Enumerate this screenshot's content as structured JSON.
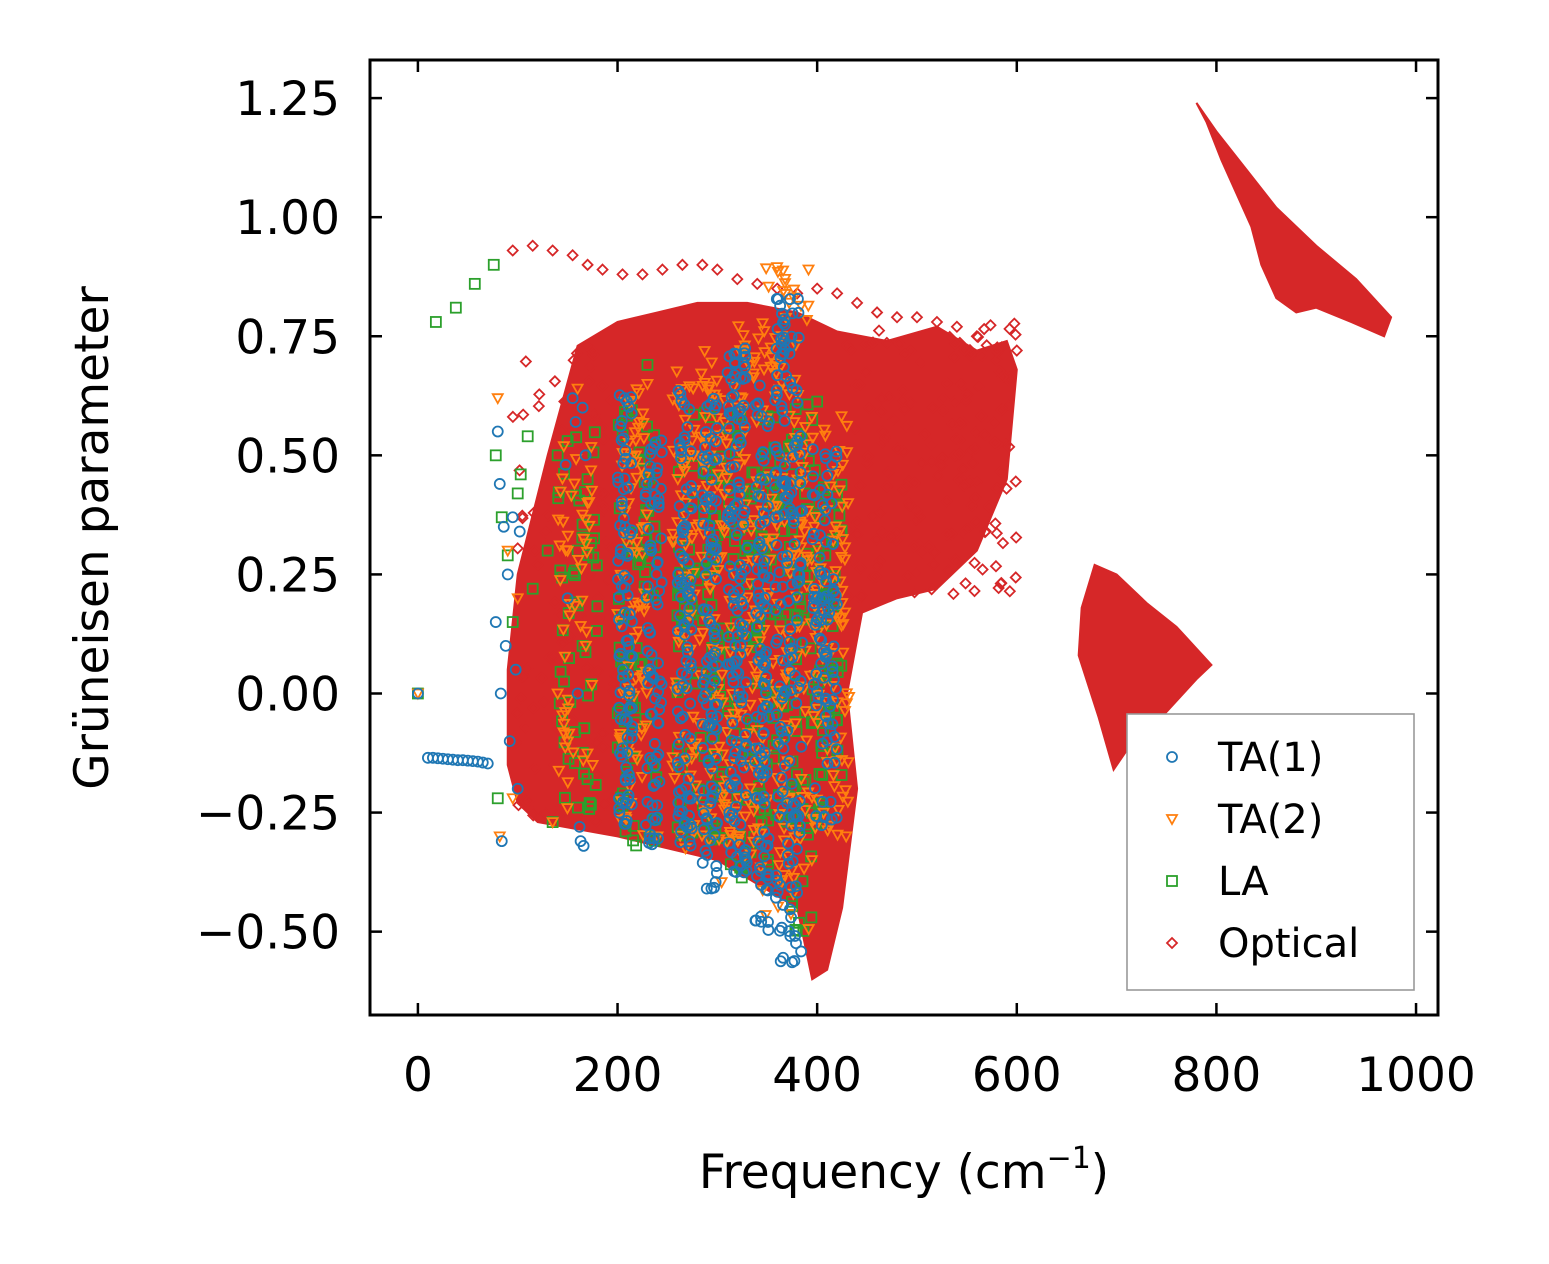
{
  "chart_data": {
    "type": "scatter",
    "title": "",
    "xlabel": "Frequency (cm",
    "xlabel_sup": "−1",
    "xlabel_close": ")",
    "ylabel": "Grüneisen parameter",
    "xlim": [
      -48,
      1022
    ],
    "ylim": [
      -0.675,
      1.33
    ],
    "xticks": [
      0,
      200,
      400,
      600,
      800,
      1000
    ],
    "xtick_labels": [
      "0",
      "200",
      "400",
      "600",
      "800",
      "1000"
    ],
    "yticks": [
      -0.5,
      -0.25,
      0.0,
      0.25,
      0.5,
      0.75,
      1.0,
      1.25
    ],
    "ytick_labels": [
      "−0.50",
      "−0.25",
      "0.00",
      "0.25",
      "0.50",
      "0.75",
      "1.00",
      "1.25"
    ],
    "legend_position": "lower-right",
    "series": [
      {
        "name": "TA(1)",
        "marker": "circle",
        "color": "#1f77b4",
        "points": [
          [
            0,
            0.0
          ],
          [
            10,
            -0.135
          ],
          [
            15,
            -0.135
          ],
          [
            20,
            -0.136
          ],
          [
            25,
            -0.137
          ],
          [
            30,
            -0.138
          ],
          [
            35,
            -0.139
          ],
          [
            40,
            -0.14
          ],
          [
            45,
            -0.14
          ],
          [
            50,
            -0.141
          ],
          [
            55,
            -0.142
          ],
          [
            60,
            -0.143
          ],
          [
            65,
            -0.145
          ],
          [
            70,
            -0.147
          ],
          [
            78,
            0.15
          ],
          [
            80,
            0.55
          ],
          [
            82,
            0.44
          ],
          [
            83,
            0.0
          ],
          [
            84,
            -0.31
          ],
          [
            86,
            0.35
          ],
          [
            88,
            0.1
          ],
          [
            90,
            0.25
          ],
          [
            92,
            -0.1
          ],
          [
            95,
            0.37
          ],
          [
            98,
            0.05
          ],
          [
            100,
            -0.2
          ],
          [
            102,
            0.34
          ],
          [
            148,
            0.48
          ],
          [
            150,
            0.2
          ],
          [
            155,
            0.62
          ],
          [
            158,
            0.57
          ],
          [
            160,
            0.0
          ],
          [
            162,
            -0.28
          ],
          [
            163,
            -0.31
          ],
          [
            165,
            0.6
          ],
          [
            166,
            -0.32
          ],
          [
            168,
            0.5
          ]
        ],
        "clusters": [
          {
            "x": [
              200,
              215
            ],
            "y": [
              -0.28,
              0.63
            ],
            "n": 90
          },
          {
            "x": [
              228,
              245
            ],
            "y": [
              -0.33,
              0.55
            ],
            "n": 80
          },
          {
            "x": [
              260,
              275
            ],
            "y": [
              -0.32,
              0.66
            ],
            "n": 90
          },
          {
            "x": [
              285,
              300
            ],
            "y": [
              -0.41,
              0.62
            ],
            "n": 100
          },
          {
            "x": [
              310,
              330
            ],
            "y": [
              -0.4,
              0.73
            ],
            "n": 130
          },
          {
            "x": [
              338,
              352
            ],
            "y": [
              -0.5,
              0.65
            ],
            "n": 100
          },
          {
            "x": [
              358,
              385
            ],
            "y": [
              -0.58,
              0.83
            ],
            "n": 170
          },
          {
            "x": [
              395,
              420
            ],
            "y": [
              -0.3,
              0.52
            ],
            "n": 90
          }
        ]
      },
      {
        "name": "TA(2)",
        "marker": "triangle-down",
        "color": "#ff7f0e",
        "points": [
          [
            0,
            0.0
          ],
          [
            80,
            0.62
          ],
          [
            82,
            -0.3
          ],
          [
            90,
            0.3
          ],
          [
            95,
            -0.22
          ],
          [
            100,
            0.2
          ],
          [
            135,
            -0.27
          ],
          [
            140,
            0.0
          ],
          [
            150,
            0.3
          ],
          [
            160,
            0.64
          ],
          [
            170,
            0.4
          ],
          [
            175,
            -0.15
          ],
          [
            230,
            0.65
          ],
          [
            240,
            -0.3
          ]
        ],
        "clusters": [
          {
            "x": [
              140,
              175
            ],
            "y": [
              -0.25,
              0.55
            ],
            "n": 50
          },
          {
            "x": [
              200,
              230
            ],
            "y": [
              -0.3,
              0.65
            ],
            "n": 80
          },
          {
            "x": [
              255,
              300
            ],
            "y": [
              -0.33,
              0.74
            ],
            "n": 120
          },
          {
            "x": [
              300,
              345
            ],
            "y": [
              -0.4,
              0.78
            ],
            "n": 130
          },
          {
            "x": [
              345,
              395
            ],
            "y": [
              -0.5,
              0.9
            ],
            "n": 160
          },
          {
            "x": [
              395,
              432
            ],
            "y": [
              -0.3,
              0.6
            ],
            "n": 90
          }
        ]
      },
      {
        "name": "LA",
        "marker": "square",
        "color": "#2ca02c",
        "points": [
          [
            0,
            0.0
          ],
          [
            18,
            0.78
          ],
          [
            38,
            0.81
          ],
          [
            57,
            0.86
          ],
          [
            76,
            0.9
          ],
          [
            78,
            0.5
          ],
          [
            80,
            -0.22
          ],
          [
            84,
            0.37
          ],
          [
            90,
            0.29
          ],
          [
            95,
            0.15
          ],
          [
            100,
            0.42
          ],
          [
            103,
            0.46
          ],
          [
            110,
            0.54
          ],
          [
            115,
            0.22
          ],
          [
            130,
            0.3
          ],
          [
            135,
            -0.27
          ],
          [
            140,
            0.5
          ],
          [
            150,
            0.53
          ],
          [
            160,
            0.3
          ],
          [
            165,
            0.1
          ],
          [
            170,
            0.45
          ],
          [
            172,
            -0.23
          ],
          [
            230,
            0.69
          ],
          [
            232,
            -0.3
          ]
        ],
        "clusters": [
          {
            "x": [
              140,
              180
            ],
            "y": [
              -0.25,
              0.55
            ],
            "n": 50
          },
          {
            "x": [
              200,
              240
            ],
            "y": [
              -0.32,
              0.62
            ],
            "n": 70
          },
          {
            "x": [
              260,
              300
            ],
            "y": [
              -0.32,
              0.62
            ],
            "n": 70
          },
          {
            "x": [
              300,
              350
            ],
            "y": [
              -0.4,
              0.6
            ],
            "n": 80
          },
          {
            "x": [
              350,
              400
            ],
            "y": [
              -0.5,
              0.62
            ],
            "n": 100
          },
          {
            "x": [
              400,
              425
            ],
            "y": [
              -0.25,
              0.45
            ],
            "n": 50
          }
        ]
      },
      {
        "name": "Optical",
        "marker": "diamond",
        "color": "#d62728",
        "points": [
          [
            95,
            0.93
          ],
          [
            115,
            0.94
          ],
          [
            135,
            0.93
          ],
          [
            155,
            0.92
          ],
          [
            170,
            0.9
          ],
          [
            185,
            0.89
          ],
          [
            205,
            0.88
          ],
          [
            225,
            0.88
          ],
          [
            245,
            0.89
          ],
          [
            265,
            0.9
          ],
          [
            285,
            0.9
          ],
          [
            300,
            0.89
          ],
          [
            320,
            0.87
          ],
          [
            340,
            0.86
          ],
          [
            360,
            0.85
          ],
          [
            380,
            0.84
          ],
          [
            400,
            0.85
          ],
          [
            420,
            0.84
          ],
          [
            440,
            0.82
          ],
          [
            460,
            0.8
          ],
          [
            480,
            0.79
          ],
          [
            500,
            0.79
          ],
          [
            520,
            0.78
          ],
          [
            540,
            0.77
          ],
          [
            560,
            0.75
          ],
          [
            580,
            0.72
          ],
          [
            600,
            0.72
          ]
        ],
        "polygons": [
          [
            [
              100,
              0.25
            ],
            [
              130,
              0.5
            ],
            [
              160,
              0.73
            ],
            [
              200,
              0.78
            ],
            [
              240,
              0.8
            ],
            [
              280,
              0.82
            ],
            [
              330,
              0.82
            ],
            [
              380,
              0.8
            ],
            [
              420,
              0.76
            ],
            [
              470,
              0.74
            ],
            [
              520,
              0.77
            ],
            [
              560,
              0.72
            ],
            [
              590,
              0.74
            ],
            [
              600,
              0.68
            ],
            [
              590,
              0.45
            ],
            [
              560,
              0.3
            ],
            [
              520,
              0.22
            ],
            [
              480,
              0.2
            ],
            [
              445,
              0.17
            ],
            [
              430,
              0.0
            ],
            [
              440,
              -0.2
            ],
            [
              425,
              -0.45
            ],
            [
              410,
              -0.58
            ],
            [
              395,
              -0.6
            ],
            [
              380,
              -0.45
            ],
            [
              300,
              -0.35
            ],
            [
              200,
              -0.3
            ],
            [
              120,
              -0.27
            ],
            [
              100,
              -0.23
            ],
            [
              90,
              -0.15
            ],
            [
              90,
              0.05
            ]
          ],
          [
            [
              678,
              0.27
            ],
            [
              700,
              0.25
            ],
            [
              730,
              0.19
            ],
            [
              760,
              0.14
            ],
            [
              795,
              0.06
            ],
            [
              780,
              0.03
            ],
            [
              745,
              -0.05
            ],
            [
              710,
              -0.12
            ],
            [
              697,
              -0.16
            ],
            [
              682,
              -0.05
            ],
            [
              662,
              0.08
            ],
            [
              665,
              0.18
            ]
          ],
          [
            [
              780,
              1.24
            ],
            [
              800,
              1.18
            ],
            [
              830,
              1.1
            ],
            [
              860,
              1.02
            ],
            [
              900,
              0.94
            ],
            [
              940,
              0.87
            ],
            [
              975,
              0.79
            ],
            [
              968,
              0.75
            ],
            [
              935,
              0.78
            ],
            [
              900,
              0.81
            ],
            [
              880,
              0.8
            ],
            [
              860,
              0.83
            ],
            [
              845,
              0.9
            ],
            [
              835,
              0.98
            ],
            [
              820,
              1.05
            ],
            [
              805,
              1.12
            ],
            [
              790,
              1.2
            ]
          ]
        ],
        "clusters": [
          {
            "x": [
              430,
              600
            ],
            "y": [
              0.2,
              0.78
            ],
            "n": 180
          },
          {
            "x": [
              95,
              200
            ],
            "y": [
              -0.28,
              0.75
            ],
            "n": 120
          }
        ]
      }
    ]
  }
}
